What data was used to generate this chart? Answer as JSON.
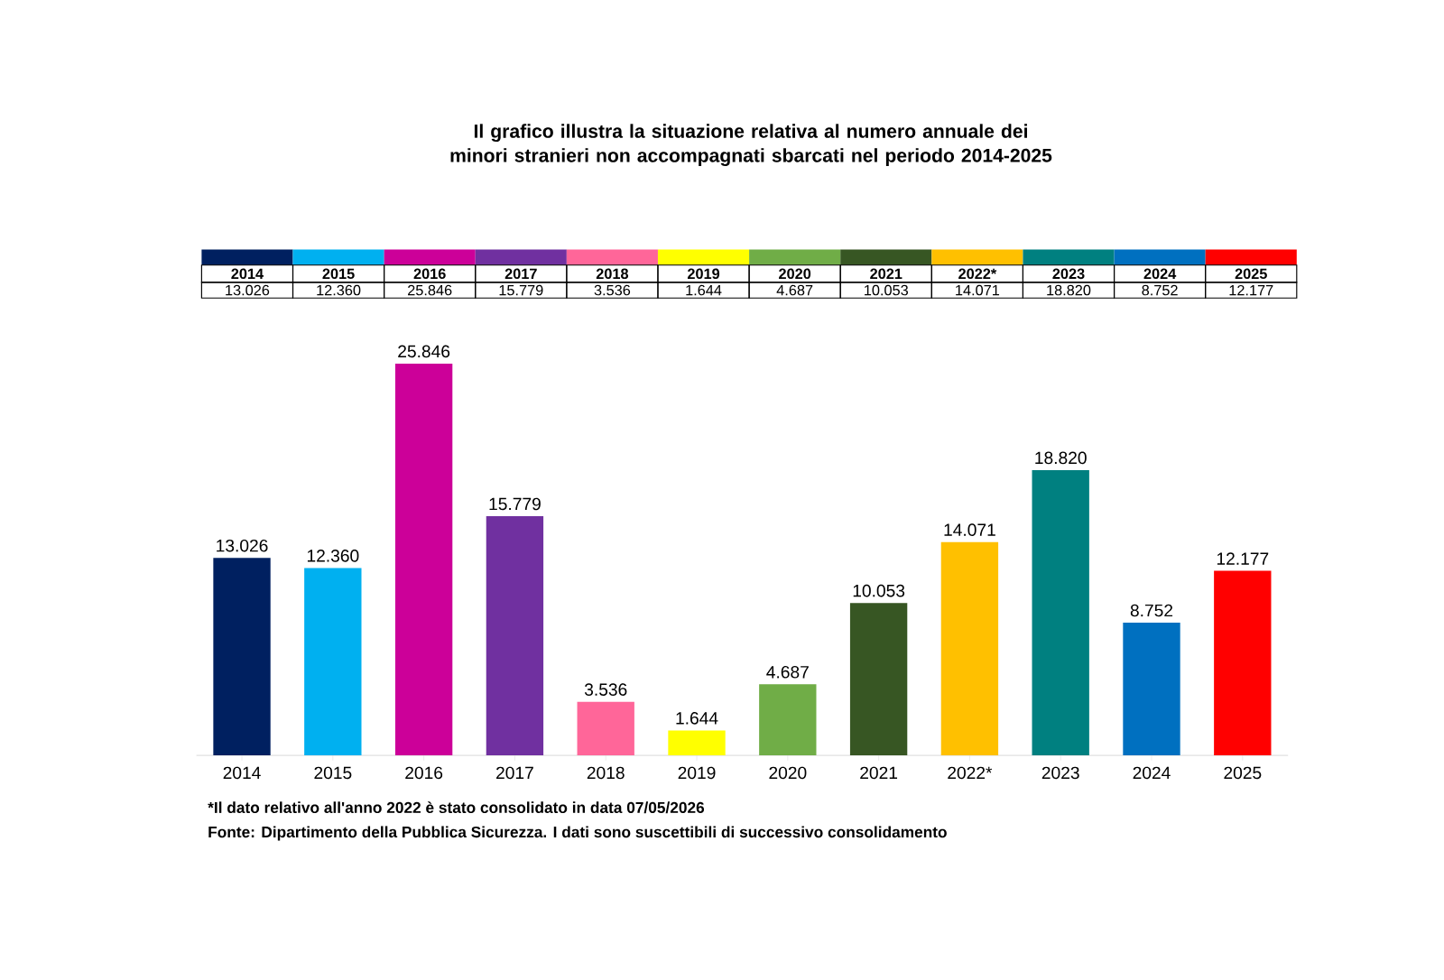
{
  "chart_data": {
    "type": "bar",
    "title": "Il grafico illustra la situazione relativa al numero annuale dei minori stranieri non accompagnati sbarcati nel periodo 2014-2025",
    "categories": [
      "2014",
      "2015",
      "2016",
      "2017",
      "2018",
      "2019",
      "2020",
      "2021",
      "2022*",
      "2023",
      "2024",
      "2025"
    ],
    "values": [
      13026,
      12360,
      25846,
      15779,
      3536,
      1644,
      4687,
      10053,
      14071,
      18820,
      8752,
      12177
    ],
    "value_labels": [
      "13.026",
      "12.360",
      "25.846",
      "15.779",
      "3.536",
      "1.644",
      "4.687",
      "10.053",
      "14.071",
      "18.820",
      "8.752",
      "12.177"
    ],
    "colors": [
      "#002060",
      "#00b0f0",
      "#cc0099",
      "#7030a0",
      "#ff6699",
      "#ffff00",
      "#70ad47",
      "#375623",
      "#ffc000",
      "#008080",
      "#0070c0",
      "#ff0000"
    ],
    "annotations": [
      "*Il dato relativo all'anno 2022 è stato consolidato in data 07/05/2026",
      "Fonte: Dipartimento della Pubblica Sicurezza. I dati sono suscettibili di successivo consolidamento"
    ]
  }
}
